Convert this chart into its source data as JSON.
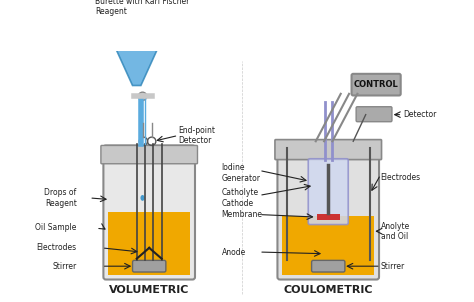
{
  "bg_color": "#f5f5f0",
  "title_vol": "VOLUMETRIC",
  "title_coul": "COULOMETRIC",
  "labels_vol": {
    "burette": "Burette with Karl Fischer\nReagent",
    "endpoint": "End-point\nDetector",
    "drops": "Drops of\nReagent",
    "oil": "Oil Sample",
    "electrodes": "Electrodes",
    "stirrer": "Stirrer"
  },
  "labels_coul": {
    "control": "CONTROL",
    "detector": "Detector",
    "iodine": "Iodine\nGenerator",
    "catholyte": "Catholyte\nCathode",
    "membrane": "Membrane",
    "anode": "Anode",
    "electrodes": "Electrodes",
    "anolyte": "Anolyte\nand Oil",
    "stirrer": "Stirrer"
  },
  "colors": {
    "burette_blue": "#5aabde",
    "liquid_yellow": "#f0a800",
    "vessel_gray": "#c8c8c8",
    "vessel_outline": "#888888",
    "stirrer_metal": "#a0a0a0",
    "electrode_dark": "#333333",
    "inner_vessel_blue": "#9090cc",
    "control_box": "#aaaaaa",
    "membrane_red": "#cc3333",
    "drop_blue": "#4499cc",
    "text_dark": "#222222",
    "arrow_dark": "#222222",
    "white_bg": "#ffffff"
  }
}
